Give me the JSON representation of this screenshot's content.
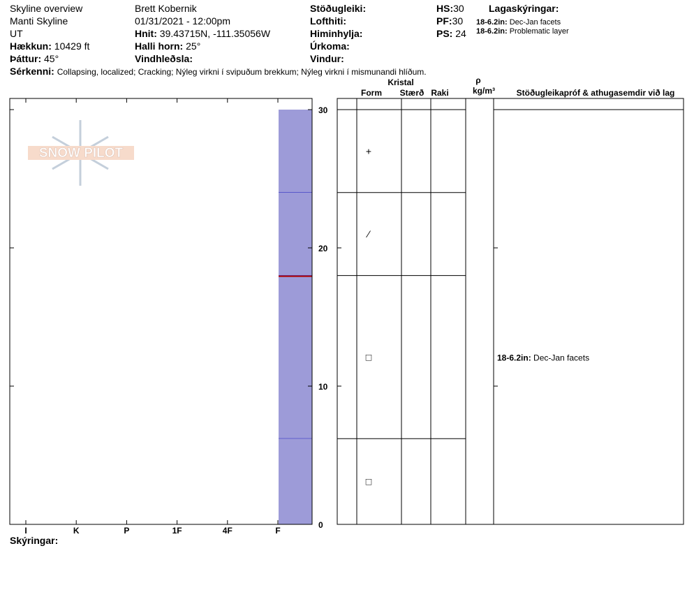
{
  "header": {
    "title": "Skyline overview",
    "location": "Manti Skyline",
    "state": "UT",
    "elevation": {
      "label": "Hækkun:",
      "value": "10429 ft"
    },
    "aspect": {
      "label": "Þáttur:",
      "value": "45°"
    },
    "observer": "Brett Kobernik",
    "datetime": "01/31/2021 - 12:00pm",
    "coords": {
      "label": "Hnit:",
      "value": "39.43715N, -111.35056W"
    },
    "slope": {
      "label": "Halli horn:",
      "value": "25°"
    },
    "wind_loading": {
      "label": "Vindhleðsla:"
    },
    "stability": {
      "label": "Stöðugleiki:"
    },
    "air_temp": {
      "label": "Lofthiti:"
    },
    "sky": {
      "label": "Himinhylja:"
    },
    "precip": {
      "label": "Úrkoma:"
    },
    "wind": {
      "label": "Vindur:"
    },
    "hs": {
      "label": "HS:",
      "value": "30"
    },
    "pf": {
      "label": "PF:",
      "value": "30"
    },
    "ps": {
      "label": "PS:",
      "value": "24"
    },
    "legend": {
      "title": "Lagaskýringar:",
      "items": [
        {
          "label": "18-6.2in:",
          "text": "Dec-Jan facets"
        },
        {
          "label": "18-6.2in:",
          "text": "Problematic layer"
        }
      ]
    },
    "features": {
      "label": "Sérkenni:",
      "value": "Collapsing, localized;  Cracking;  Nýleg virkni í svipuðum brekkum;  Nýleg virkni í mismunandi hlíðum."
    },
    "footer": "Skýringar:",
    "logo": "SNOW PILOT"
  },
  "chart_data": {
    "type": "snow_profile",
    "ylim": [
      0,
      30
    ],
    "yticks": [
      0,
      10,
      20,
      30
    ],
    "hardness_ticks": [
      "I",
      "K",
      "P",
      "1F",
      "4F",
      "F"
    ],
    "bar_color": "#9d9bd8",
    "line_color": "#2020c0",
    "problem_color": "#b00000",
    "problem_line": 18,
    "columns": {
      "crystal": "Kristal",
      "form": "Form",
      "size": "Stærð",
      "moisture": "Raki",
      "rho": "ρ",
      "rho_unit": "kg/m³",
      "comments": "Stöðugleikapróf & athugasemdir við lag"
    },
    "layers": [
      {
        "top": 30,
        "bottom": 24,
        "hardness": "F",
        "form": "+"
      },
      {
        "top": 24,
        "bottom": 18,
        "hardness": "F",
        "form": "⁄"
      },
      {
        "top": 18,
        "bottom": 6.2,
        "hardness": "F",
        "form": "□",
        "comment": {
          "label": "18-6.2in:",
          "text": "Dec-Jan facets"
        }
      },
      {
        "top": 6.2,
        "bottom": 0,
        "hardness": "F",
        "form": "□"
      }
    ]
  }
}
